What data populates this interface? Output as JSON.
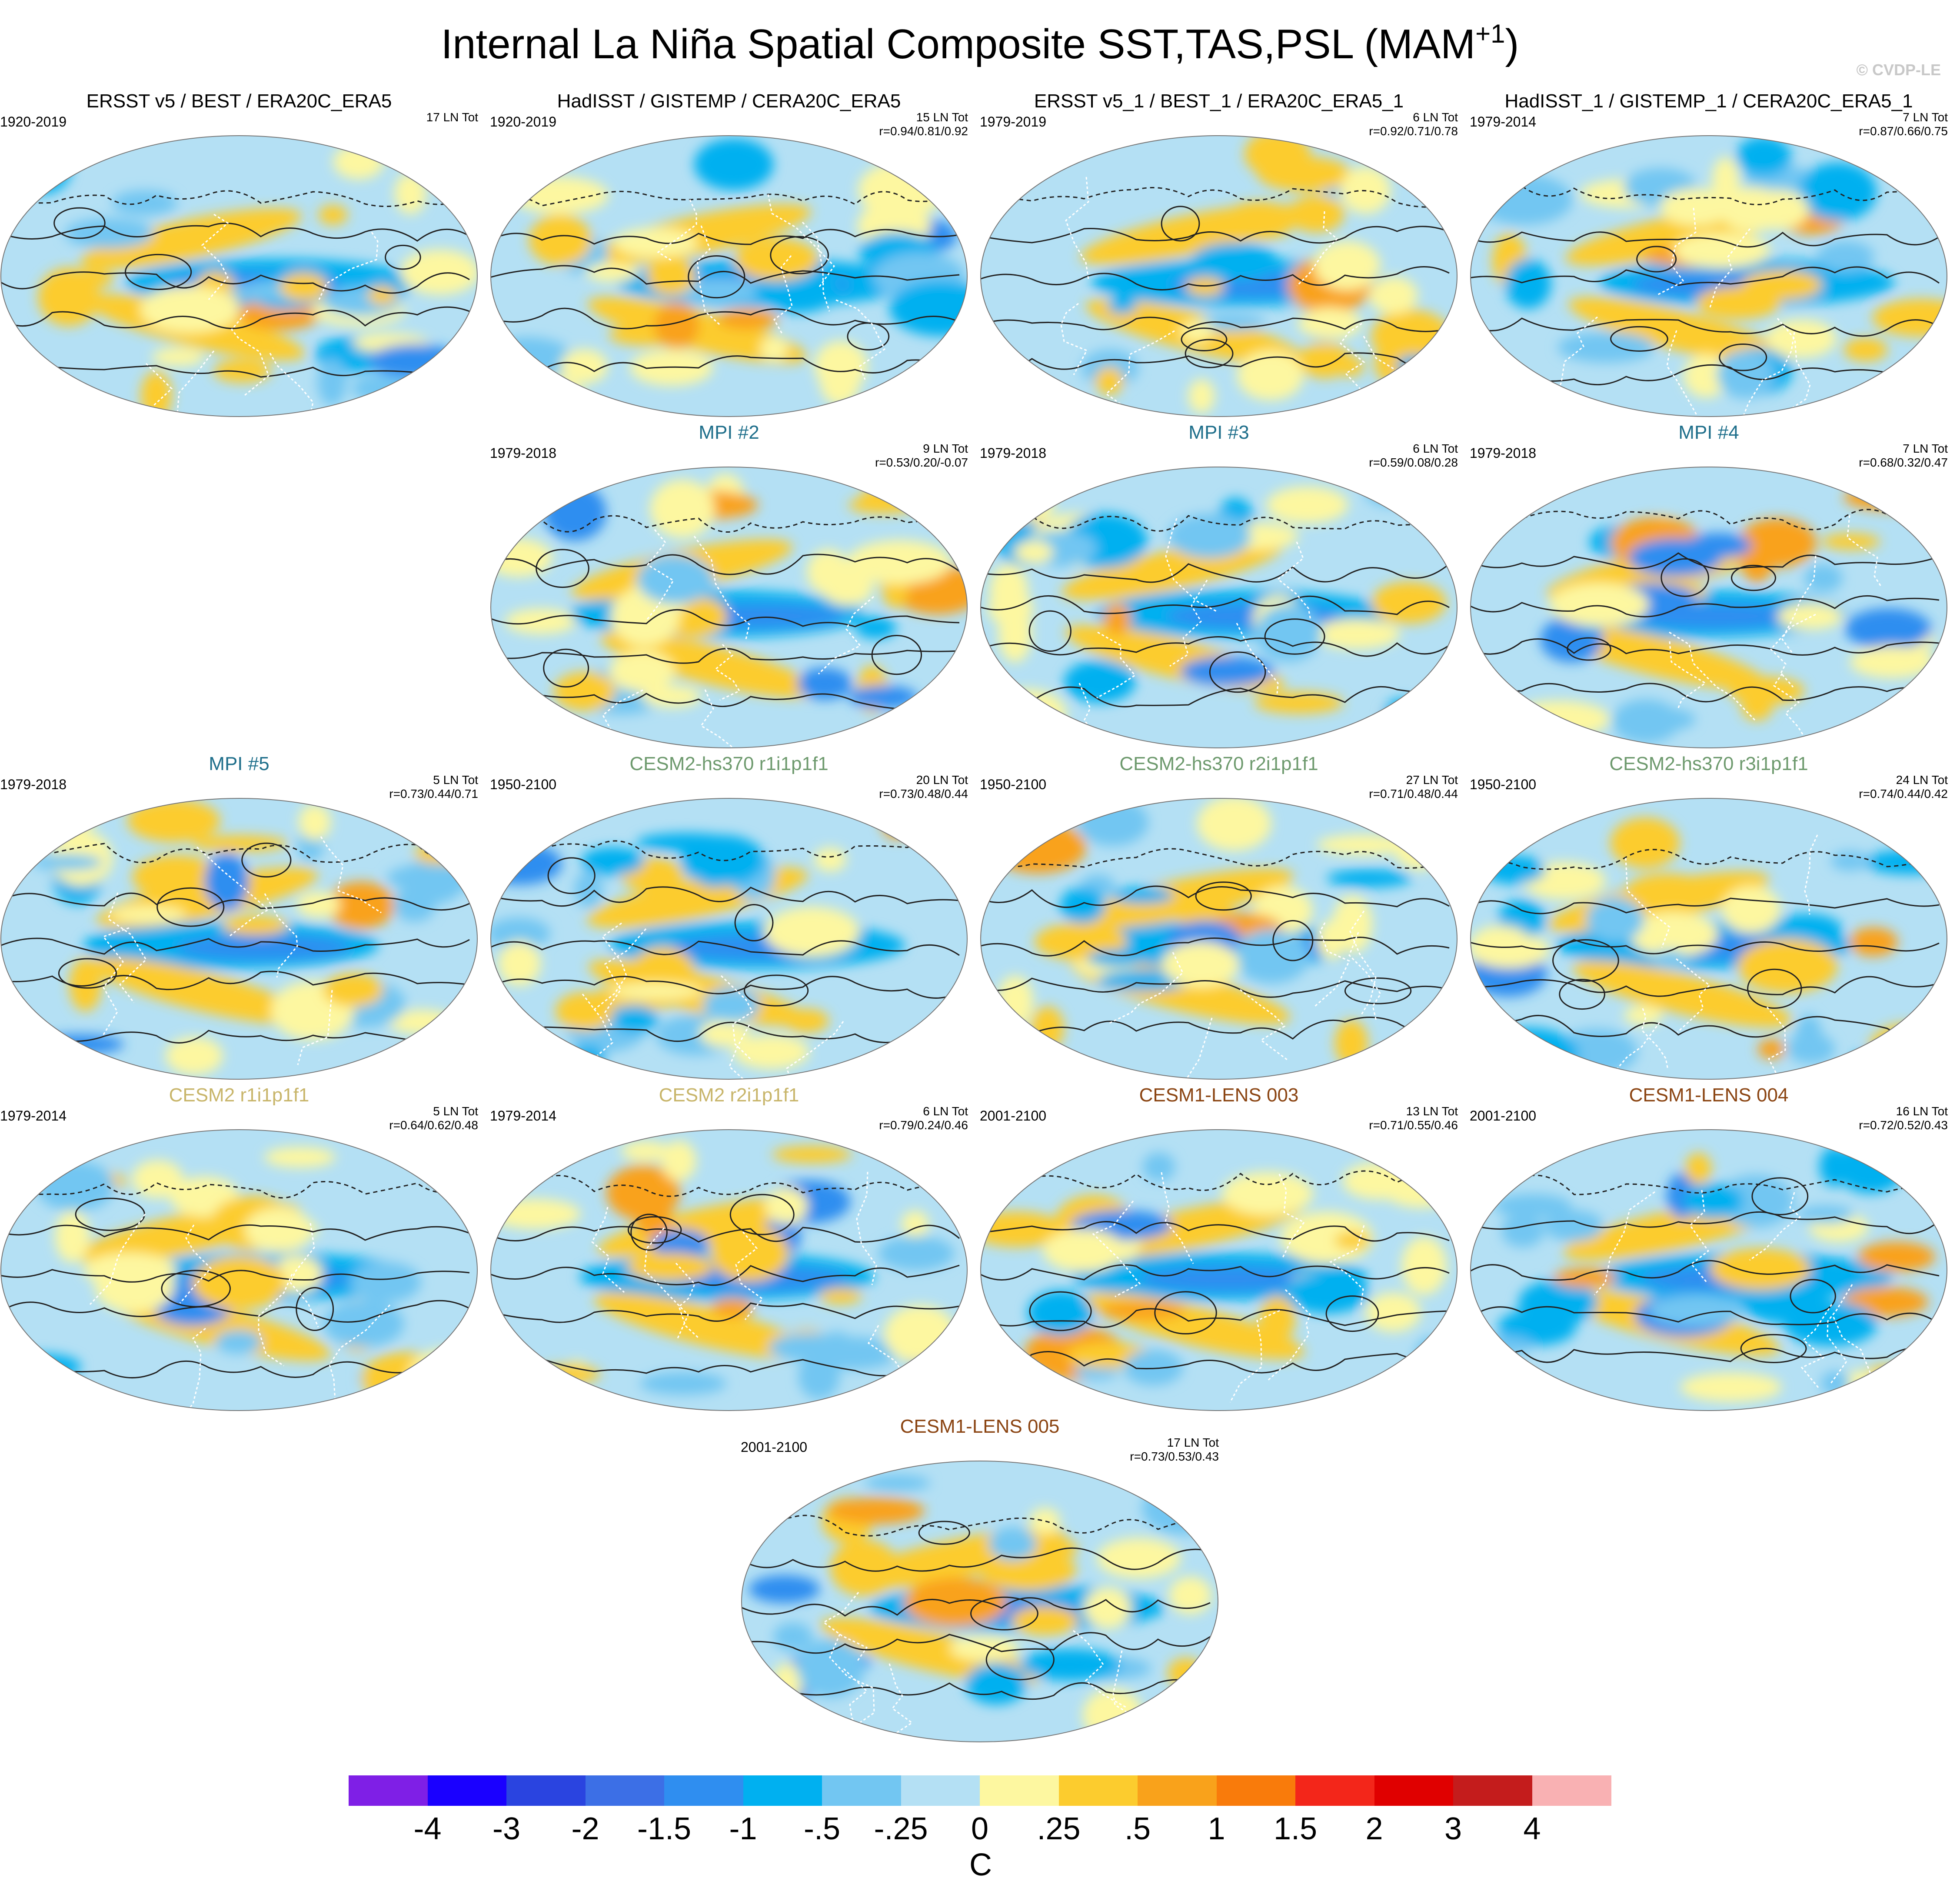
{
  "title_main": "Internal La Niña Spatial Composite SST,TAS,PSL (MAM",
  "title_sup": "+1",
  "title_end": ")",
  "copyright": "© CVDP-LE",
  "panels": [
    {
      "title": "ERSST v5 / BEST / ERA20C_ERA5",
      "title_color": "#000000",
      "period": "1920-2019",
      "count": "17 LN Tot",
      "corr": "",
      "seed": 11
    },
    {
      "title": "HadISST / GISTEMP / CERA20C_ERA5",
      "title_color": "#000000",
      "period": "1920-2019",
      "count": "15 LN Tot",
      "corr": "r=0.94/0.81/0.92",
      "seed": 23
    },
    {
      "title": "ERSST v5_1 / BEST_1 / ERA20C_ERA5_1",
      "title_color": "#000000",
      "period": "1979-2019",
      "count": "6 LN Tot",
      "corr": "r=0.92/0.71/0.78",
      "seed": 37
    },
    {
      "title": "HadISST_1 / GISTEMP_1 / CERA20C_ERA5_1",
      "title_color": "#000000",
      "period": "1979-2014",
      "count": "7 LN Tot",
      "corr": "r=0.87/0.66/0.75",
      "seed": 41
    },
    {
      "title": "MPI #2",
      "title_color": "#1f6f8b",
      "period": "1979-2018",
      "count": "9 LN Tot",
      "corr": "r=0.53/0.20/-0.07",
      "seed": 53
    },
    {
      "title": "MPI #3",
      "title_color": "#1f6f8b",
      "period": "1979-2018",
      "count": "6 LN Tot",
      "corr": "r=0.59/0.08/0.28",
      "seed": 67
    },
    {
      "title": "MPI #4",
      "title_color": "#1f6f8b",
      "period": "1979-2018",
      "count": "7 LN Tot",
      "corr": "r=0.68/0.32/0.47",
      "seed": 71
    },
    {
      "title": "MPI #5",
      "title_color": "#1f6f8b",
      "period": "1979-2018",
      "count": "5 LN Tot",
      "corr": "r=0.73/0.44/0.71",
      "seed": 83
    },
    {
      "title": "CESM2-hs370 r1i1p1f1",
      "title_color": "#6e9a6e",
      "period": "1950-2100",
      "count": "20 LN Tot",
      "corr": "r=0.73/0.48/0.44",
      "seed": 97
    },
    {
      "title": "CESM2-hs370 r2i1p1f1",
      "title_color": "#6e9a6e",
      "period": "1950-2100",
      "count": "27 LN Tot",
      "corr": "r=0.71/0.48/0.44",
      "seed": 101
    },
    {
      "title": "CESM2-hs370 r3i1p1f1",
      "title_color": "#6e9a6e",
      "period": "1950-2100",
      "count": "24 LN Tot",
      "corr": "r=0.74/0.44/0.42",
      "seed": 113
    },
    {
      "title": "CESM2 r1i1p1f1",
      "title_color": "#c8b56a",
      "period": "1979-2014",
      "count": "5 LN Tot",
      "corr": "r=0.64/0.62/0.48",
      "seed": 127
    },
    {
      "title": "CESM2 r2i1p1f1",
      "title_color": "#c8b56a",
      "period": "1979-2014",
      "count": "6 LN Tot",
      "corr": "r=0.79/0.24/0.46",
      "seed": 131
    },
    {
      "title": "CESM1-LENS 003",
      "title_color": "#8b4513",
      "period": "2001-2100",
      "count": "13 LN Tot",
      "corr": "r=0.71/0.55/0.46",
      "seed": 149
    },
    {
      "title": "CESM1-LENS 004",
      "title_color": "#8b4513",
      "period": "2001-2100",
      "count": "16 LN Tot",
      "corr": "r=0.72/0.52/0.43",
      "seed": 157
    },
    {
      "title": "CESM1-LENS 005",
      "title_color": "#8b4513",
      "period": "2001-2100",
      "count": "17 LN Tot",
      "corr": "r=0.73/0.53/0.43",
      "seed": 163
    }
  ],
  "colorbar": {
    "colors": [
      "#7f1fe6",
      "#1a00ff",
      "#2a44e0",
      "#3c6fe6",
      "#2f8ef0",
      "#00b0f0",
      "#72c6f2",
      "#b4e0f4",
      "#fdf7a0",
      "#fccc2e",
      "#f9a21b",
      "#f97b0b",
      "#f3261a",
      "#e00000",
      "#c41c1c",
      "#f9b1b3"
    ],
    "labels": [
      "-4",
      "-3",
      "-2",
      "-1.5",
      "-1",
      "-.5",
      "-.25",
      "0",
      ".25",
      ".5",
      "1",
      "1.5",
      "2",
      "3",
      "4"
    ],
    "units": "C"
  }
}
